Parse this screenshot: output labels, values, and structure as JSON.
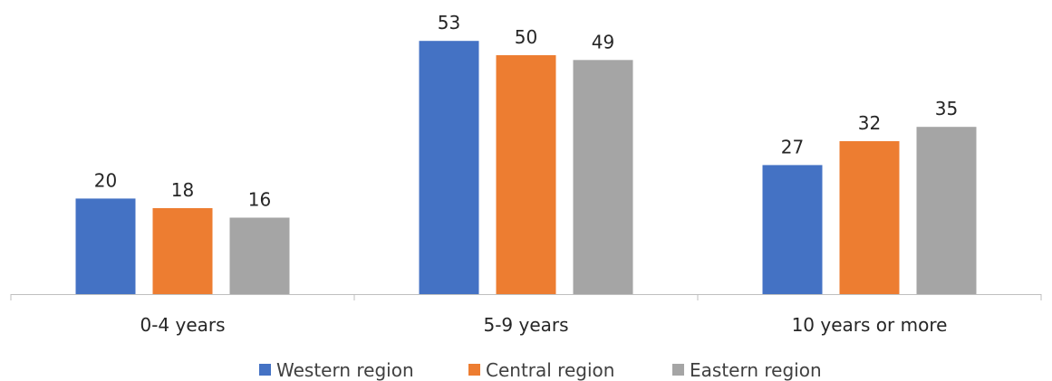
{
  "chart_data": {
    "type": "bar",
    "title": "",
    "xlabel": "",
    "ylabel": "",
    "categories": [
      "0-4 years",
      "5-9 years",
      "10 years or more"
    ],
    "series": [
      {
        "name": "Western region",
        "color": "#4472C4",
        "values": [
          20,
          53,
          27
        ]
      },
      {
        "name": "Central region",
        "color": "#ED7D31",
        "values": [
          18,
          50,
          32
        ]
      },
      {
        "name": "Eastern region",
        "color": "#A5A5A5",
        "values": [
          16,
          49,
          35
        ]
      }
    ],
    "ylim": [
      0,
      60
    ],
    "grid": false,
    "legend_position": "bottom",
    "data_labels": true
  }
}
